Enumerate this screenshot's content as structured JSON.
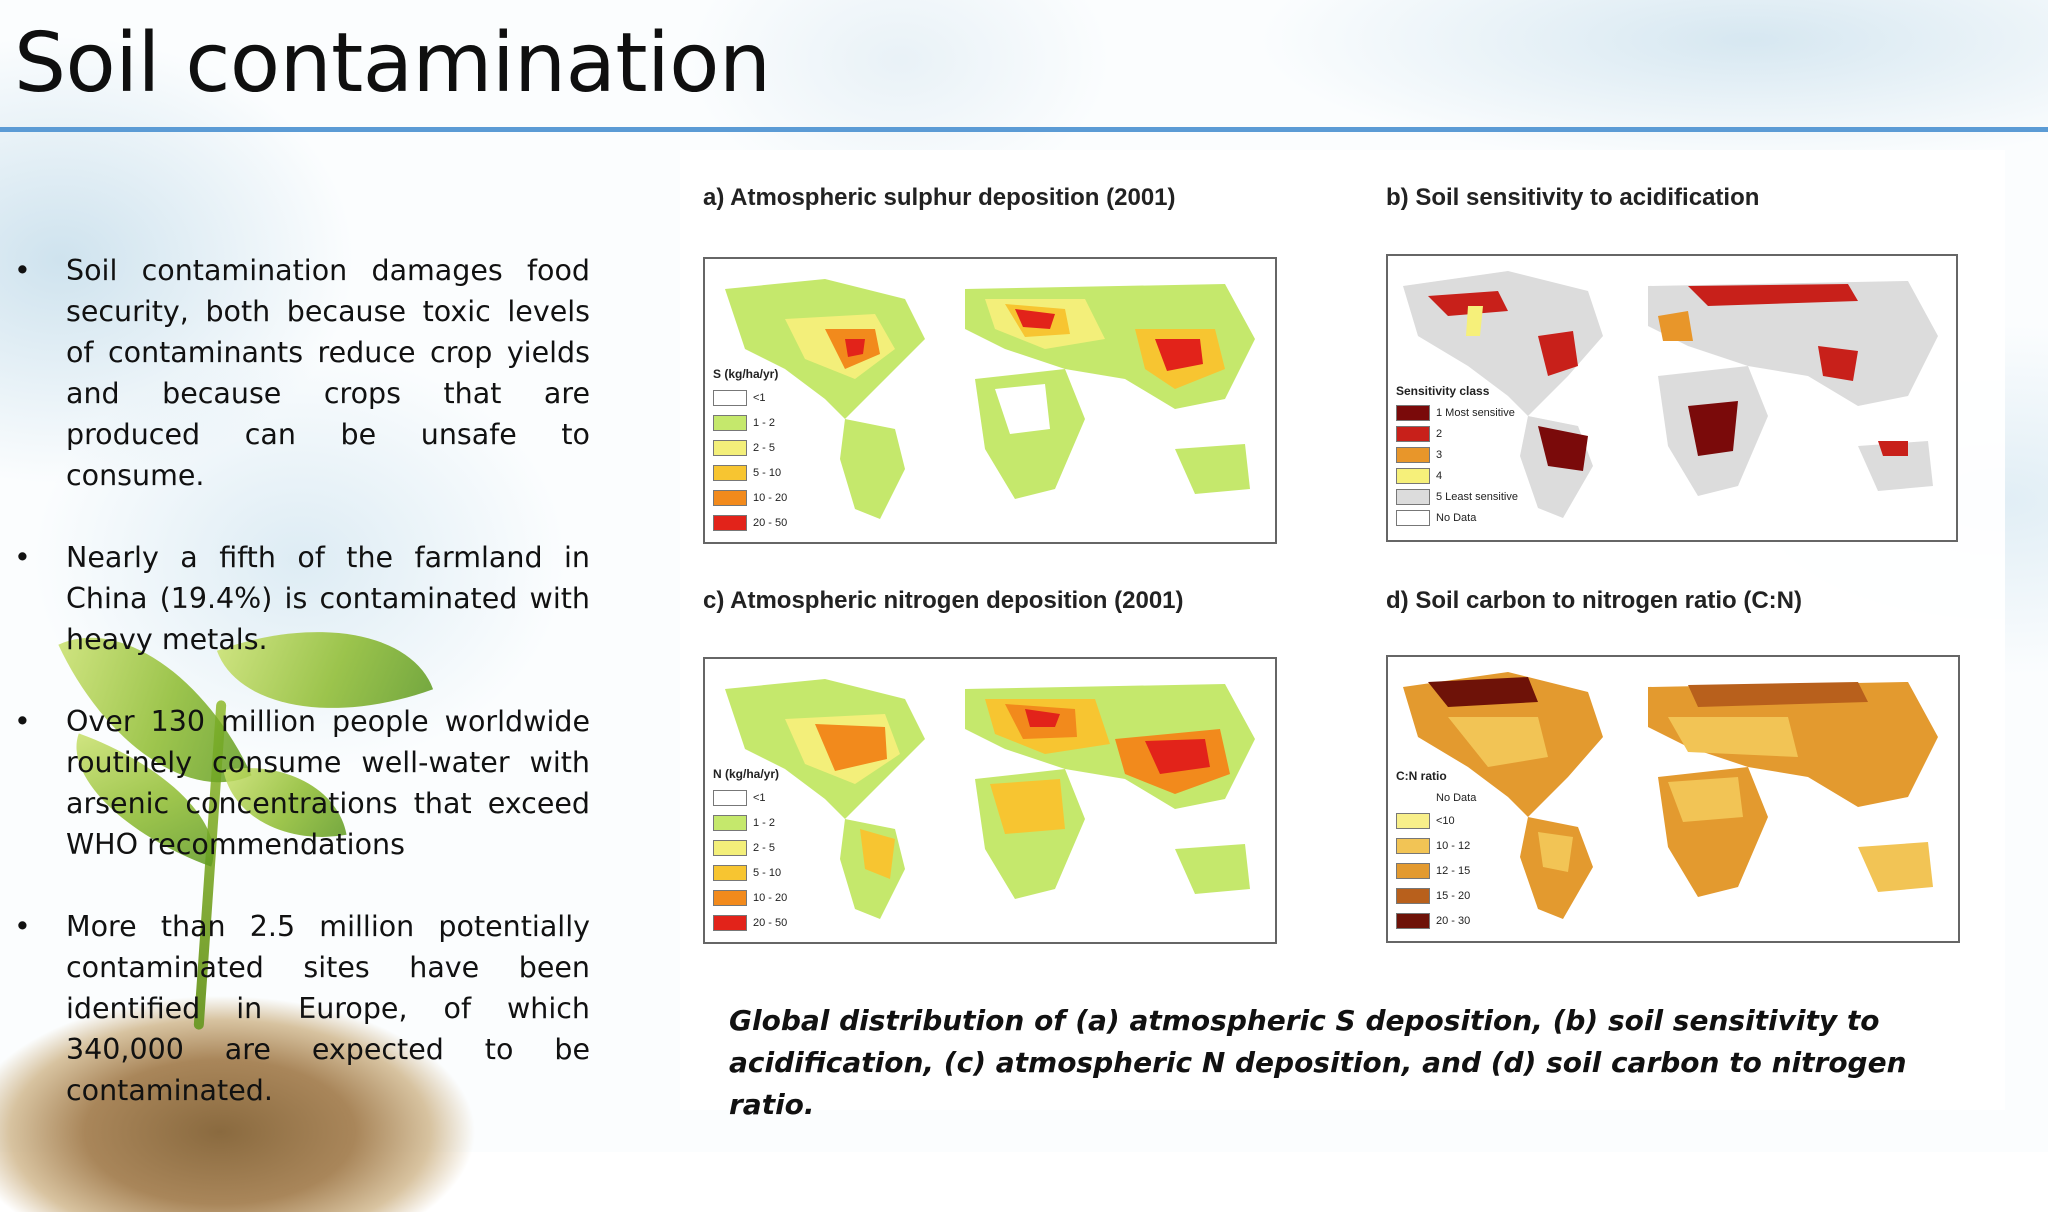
{
  "slide": {
    "title": "Soil contamination",
    "accent_color": "#5b9bd5",
    "bullet_glyph": "•",
    "bullets": [
      "Soil contamination damages food security, both because toxic levels of contaminants reduce crop yields and because crops that are produced can be unsafe to consume.",
      "Nearly a fifth of the farmland in China (19.4%) is contaminated with heavy metals.",
      "Over 130 million people worldwide routinely consume well-water with arsenic concentrations that exceed WHO recommendations",
      "More than 2.5 million potentially contaminated sites have been identified in Europe, of which 340,000 are expected to be contaminated."
    ]
  },
  "figure": {
    "maps": [
      {
        "caption": "a) Atmospheric sulphur deposition (2001)",
        "legend_title": "S (kg/ha/yr)",
        "legend": [
          {
            "label": "<1",
            "color": "#ffffff"
          },
          {
            "label": "1 - 2",
            "color": "#c5e86c"
          },
          {
            "label": "2 - 5",
            "color": "#f3ef7a"
          },
          {
            "label": "5 - 10",
            "color": "#f7c531"
          },
          {
            "label": "10 - 20",
            "color": "#f28a1c"
          },
          {
            "label": "20 - 50",
            "color": "#e2231a"
          }
        ]
      },
      {
        "caption": "b) Soil sensitivity to acidification",
        "legend_title": "Sensitivity class",
        "legend": [
          {
            "label": "1 Most sensitive",
            "color": "#7a0a0a"
          },
          {
            "label": "2",
            "color": "#c8201a"
          },
          {
            "label": "3",
            "color": "#e8962a"
          },
          {
            "label": "4",
            "color": "#f6f07a"
          },
          {
            "label": "5 Least sensitive",
            "color": "#dcdcdc"
          },
          {
            "label": "No Data",
            "color": "#ffffff"
          }
        ]
      },
      {
        "caption": "c) Atmospheric nitrogen deposition (2001)",
        "legend_title": "N (kg/ha/yr)",
        "legend": [
          {
            "label": "<1",
            "color": "#ffffff"
          },
          {
            "label": "1 - 2",
            "color": "#c5e86c"
          },
          {
            "label": "2 - 5",
            "color": "#f3ef7a"
          },
          {
            "label": "5 - 10",
            "color": "#f7c531"
          },
          {
            "label": "10 - 20",
            "color": "#f28a1c"
          },
          {
            "label": "20 - 50",
            "color": "#e2231a"
          }
        ]
      },
      {
        "caption": "d) Soil carbon to nitrogen ratio (C:N)",
        "legend_title": "C:N ratio",
        "legend": [
          {
            "label": "No Data",
            "color": "#ffffff"
          },
          {
            "label": "<10",
            "color": "#f8ef8a"
          },
          {
            "label": "10 - 12",
            "color": "#f2c455"
          },
          {
            "label": "12 - 15",
            "color": "#e39a2f"
          },
          {
            "label": "15 - 20",
            "color": "#b8601c"
          },
          {
            "label": "20 - 30",
            "color": "#6e1208"
          }
        ]
      }
    ],
    "caption": "Global distribution of (a) atmospheric S deposition, (b) soil sensitivity to acidification, (c) atmospheric N deposition, and (d) soil carbon to nitrogen ratio."
  }
}
